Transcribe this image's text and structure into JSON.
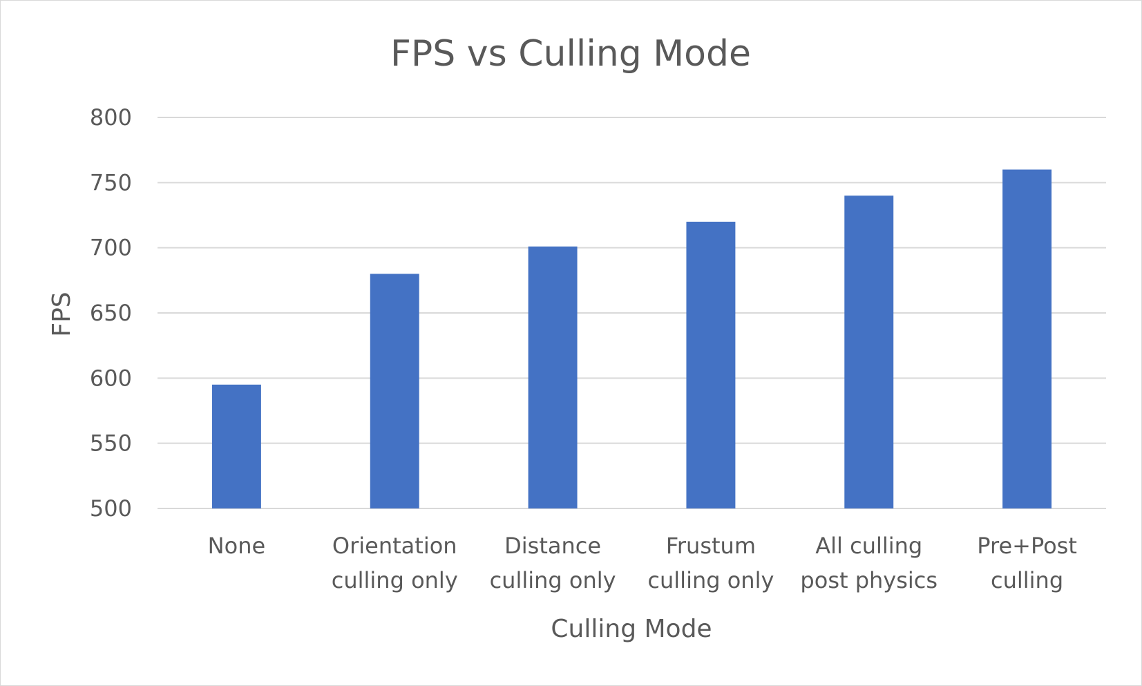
{
  "chart_data": {
    "type": "bar",
    "title": "FPS vs Culling Mode",
    "xlabel": "Culling Mode",
    "ylabel": "FPS",
    "categories": [
      [
        "None"
      ],
      [
        "Orientation",
        "culling only"
      ],
      [
        "Distance",
        "culling only"
      ],
      [
        "Frustum",
        "culling only"
      ],
      [
        "All culling",
        "post physics"
      ],
      [
        "Pre+Post",
        "culling"
      ]
    ],
    "values": [
      595,
      680,
      701,
      720,
      740,
      760
    ],
    "ylim": [
      500,
      800
    ],
    "yticks": [
      500,
      550,
      600,
      650,
      700,
      750,
      800
    ],
    "grid": true,
    "legend": "none",
    "colors": {
      "bar": "#4472c4",
      "grid": "#d9d9d9",
      "text": "#595959"
    }
  }
}
